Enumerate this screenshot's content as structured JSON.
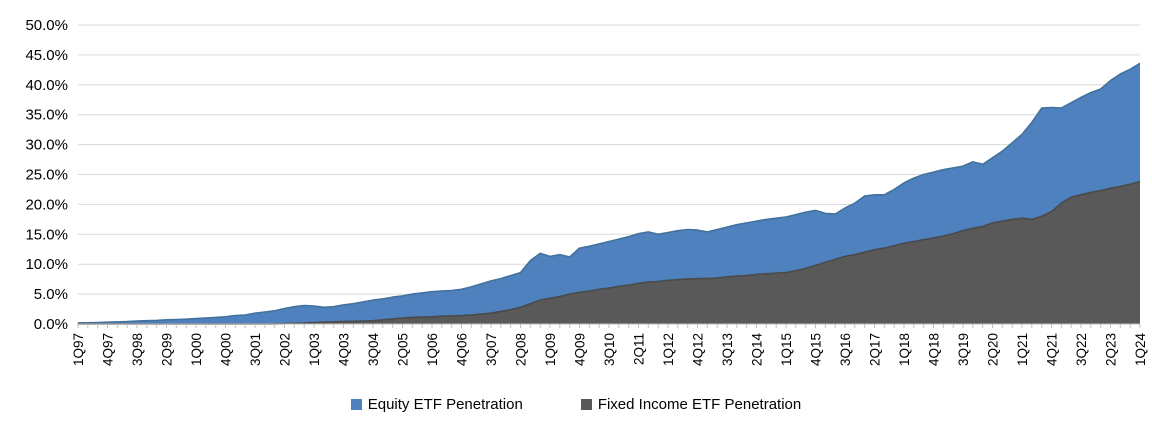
{
  "chart_data": {
    "type": "area",
    "title": "",
    "xlabel": "",
    "ylabel": "",
    "ylim": [
      0,
      50
    ],
    "ytick_step": 5,
    "ytick_labels": [
      "0.0%",
      "5.0%",
      "10.0%",
      "15.0%",
      "20.0%",
      "25.0%",
      "30.0%",
      "35.0%",
      "40.0%",
      "45.0%",
      "50.0%"
    ],
    "xtick_every": 3,
    "xtick_labels": [
      "1Q97",
      "4Q97",
      "3Q98",
      "2Q99",
      "1Q00",
      "4Q00",
      "3Q01",
      "2Q02",
      "1Q03",
      "4Q03",
      "3Q04",
      "2Q05",
      "1Q06",
      "4Q06",
      "3Q07",
      "2Q08",
      "1Q09",
      "4Q09",
      "3Q10",
      "2Q11",
      "1Q12",
      "4Q12",
      "3Q13",
      "2Q14",
      "1Q15",
      "4Q15",
      "3Q16",
      "2Q17",
      "1Q18",
      "4Q18",
      "3Q19",
      "2Q20",
      "1Q21",
      "4Q21",
      "3Q22",
      "2Q23",
      "1Q24"
    ],
    "grid": "horizontal",
    "legend_position": "bottom",
    "overlapping_areas": true,
    "colors": {
      "grid": "#D9D9D9",
      "axis": "#BFBFBF",
      "text": "#000000",
      "background": "#FFFFFF"
    },
    "categories": [
      "1Q97",
      "2Q97",
      "3Q97",
      "4Q97",
      "1Q98",
      "2Q98",
      "3Q98",
      "4Q98",
      "1Q99",
      "2Q99",
      "3Q99",
      "4Q99",
      "1Q00",
      "2Q00",
      "3Q00",
      "4Q00",
      "1Q01",
      "2Q01",
      "3Q01",
      "4Q01",
      "1Q02",
      "2Q02",
      "3Q02",
      "4Q02",
      "1Q03",
      "2Q03",
      "3Q03",
      "4Q03",
      "1Q04",
      "2Q04",
      "3Q04",
      "4Q04",
      "1Q05",
      "2Q05",
      "3Q05",
      "4Q05",
      "1Q06",
      "2Q06",
      "3Q06",
      "4Q06",
      "1Q07",
      "2Q07",
      "3Q07",
      "4Q07",
      "1Q08",
      "2Q08",
      "3Q08",
      "4Q08",
      "1Q09",
      "2Q09",
      "3Q09",
      "4Q09",
      "1Q10",
      "2Q10",
      "3Q10",
      "4Q10",
      "1Q11",
      "2Q11",
      "3Q11",
      "4Q11",
      "1Q12",
      "2Q12",
      "3Q12",
      "4Q12",
      "1Q13",
      "2Q13",
      "3Q13",
      "4Q13",
      "1Q14",
      "2Q14",
      "3Q14",
      "4Q14",
      "1Q15",
      "2Q15",
      "3Q15",
      "4Q15",
      "1Q16",
      "2Q16",
      "3Q16",
      "4Q16",
      "1Q17",
      "2Q17",
      "3Q17",
      "4Q17",
      "1Q18",
      "2Q18",
      "3Q18",
      "4Q18",
      "1Q19",
      "2Q19",
      "3Q19",
      "4Q19",
      "1Q20",
      "2Q20",
      "3Q20",
      "4Q20",
      "1Q21",
      "2Q21",
      "3Q21",
      "4Q21",
      "1Q22",
      "2Q22",
      "3Q22",
      "4Q22",
      "1Q23",
      "2Q23",
      "3Q23",
      "4Q23",
      "1Q24"
    ],
    "series": [
      {
        "name": "Equity ETF Penetration",
        "color": "#4E81BD",
        "edge": "#41719C",
        "values": [
          0.2,
          0.2,
          0.25,
          0.3,
          0.35,
          0.4,
          0.5,
          0.55,
          0.6,
          0.7,
          0.75,
          0.8,
          0.9,
          1.0,
          1.1,
          1.2,
          1.4,
          1.5,
          1.8,
          2.0,
          2.2,
          2.6,
          2.9,
          3.1,
          3.0,
          2.8,
          2.9,
          3.2,
          3.4,
          3.7,
          4.0,
          4.2,
          4.5,
          4.7,
          5.0,
          5.2,
          5.4,
          5.5,
          5.6,
          5.8,
          6.2,
          6.7,
          7.2,
          7.6,
          8.1,
          8.6,
          10.6,
          11.8,
          11.3,
          11.6,
          11.2,
          12.7,
          13.0,
          13.4,
          13.8,
          14.2,
          14.6,
          15.1,
          15.4,
          15.0,
          15.3,
          15.6,
          15.8,
          15.7,
          15.4,
          15.8,
          16.2,
          16.6,
          16.9,
          17.2,
          17.5,
          17.7,
          17.9,
          18.3,
          18.7,
          19.0,
          18.5,
          18.4,
          19.4,
          20.2,
          21.4,
          21.6,
          21.6,
          22.5,
          23.6,
          24.4,
          25.0,
          25.4,
          25.8,
          26.1,
          26.4,
          27.1,
          26.7,
          27.8,
          28.9,
          30.3,
          31.7,
          33.7,
          36.1,
          36.2,
          36.1,
          37.0,
          37.9,
          38.7,
          39.3,
          40.7,
          41.8,
          42.6,
          43.6
        ]
      },
      {
        "name": "Fixed Income ETF Penetration",
        "color": "#595959",
        "edge": "#4A4A4A",
        "values": [
          0,
          0,
          0,
          0,
          0,
          0,
          0,
          0,
          0,
          0,
          0,
          0,
          0,
          0,
          0,
          0,
          0,
          0,
          0,
          0,
          0,
          0.05,
          0.1,
          0.15,
          0.25,
          0.3,
          0.35,
          0.4,
          0.45,
          0.5,
          0.55,
          0.7,
          0.85,
          1.0,
          1.1,
          1.15,
          1.2,
          1.3,
          1.35,
          1.4,
          1.5,
          1.65,
          1.8,
          2.1,
          2.4,
          2.8,
          3.4,
          4.0,
          4.3,
          4.6,
          5.0,
          5.3,
          5.5,
          5.8,
          6.0,
          6.3,
          6.5,
          6.8,
          7.0,
          7.1,
          7.3,
          7.4,
          7.5,
          7.6,
          7.6,
          7.7,
          7.9,
          8.0,
          8.1,
          8.3,
          8.4,
          8.5,
          8.6,
          8.9,
          9.3,
          9.8,
          10.3,
          10.8,
          11.3,
          11.6,
          12.0,
          12.4,
          12.7,
          13.1,
          13.5,
          13.8,
          14.1,
          14.4,
          14.7,
          15.1,
          15.6,
          16.0,
          16.3,
          16.9,
          17.2,
          17.5,
          17.7,
          17.5,
          18.0,
          18.8,
          20.2,
          21.2,
          21.6,
          22.0,
          22.3,
          22.7,
          23.0,
          23.4,
          23.8
        ]
      }
    ]
  },
  "legend": {
    "equity_label": "Equity ETF Penetration",
    "fixed_income_label": "Fixed Income ETF Penetration"
  }
}
